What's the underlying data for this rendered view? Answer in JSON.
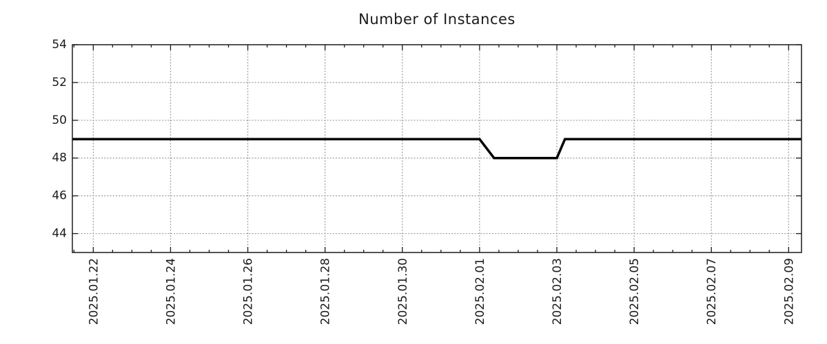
{
  "chart_data": {
    "type": "line",
    "title": "Number of Instances",
    "xlabel": "",
    "ylabel": "",
    "legend_position": "none",
    "grid": "dotted-major",
    "colors": {
      "line": "#000000",
      "grid": "#9a9a9a",
      "axis": "#1a1a1a",
      "text": "#1a1a1a",
      "background": "#ffffff"
    },
    "ylim": [
      43,
      54
    ],
    "y_ticks": [
      44,
      46,
      48,
      50,
      52,
      54
    ],
    "x_tick_labels": [
      "2025.01.22",
      "2025.01.24",
      "2025.01.26",
      "2025.01.28",
      "2025.01.30",
      "2025.02.01",
      "2025.02.03",
      "2025.02.05",
      "2025.02.07",
      "2025.02.09"
    ],
    "x_major_interval_days": 2,
    "x_minor_interval_hours": 12,
    "xlim_dates": [
      "2025-01-21T11:00:00",
      "2025-02-09T08:00:00"
    ],
    "series": [
      {
        "name": "instances",
        "points": [
          {
            "t": "2025-01-21T11:00:00",
            "v": 49
          },
          {
            "t": "2025-02-01T00:00:00",
            "v": 49
          },
          {
            "t": "2025-02-01T09:00:00",
            "v": 48
          },
          {
            "t": "2025-02-03T00:00:00",
            "v": 48
          },
          {
            "t": "2025-02-03T05:00:00",
            "v": 49
          },
          {
            "t": "2025-02-09T08:00:00",
            "v": 49
          }
        ]
      }
    ]
  }
}
